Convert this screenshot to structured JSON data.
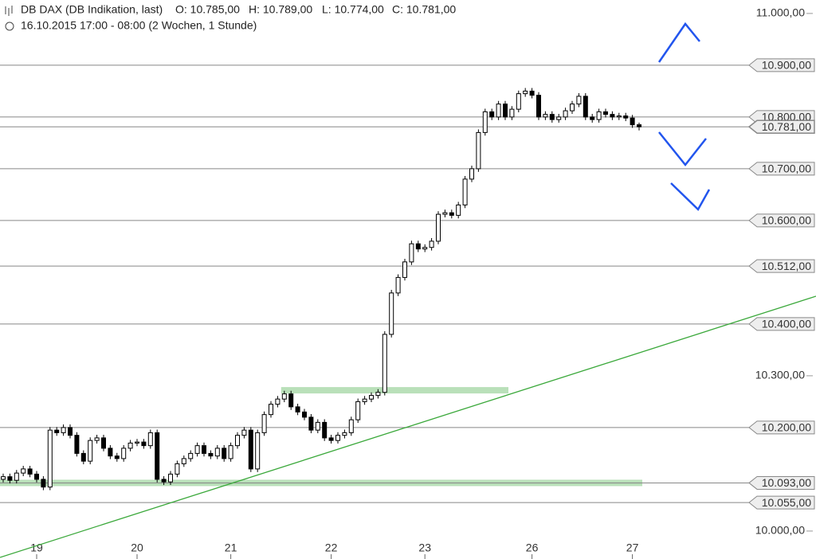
{
  "chart_data": {
    "type": "candlestick",
    "title": "DB DAX (DB Indikation, last)",
    "ohlc_labels": [
      "O: 10.785,00",
      "H: 10.789,00",
      "L: 10.774,00",
      "C: 10.781,00"
    ],
    "subtitle": "16.10.2015 17:00 - 08:00 (2 Wochen, 1 Stunde)",
    "categories": [
      null,
      null,
      null,
      null,
      null,
      "19",
      null,
      null,
      null,
      null,
      null,
      null,
      null,
      null,
      null,
      null,
      null,
      null,
      null,
      null,
      "20",
      null,
      null,
      null,
      null,
      null,
      null,
      null,
      null,
      null,
      null,
      null,
      null,
      null,
      "21",
      null,
      null,
      null,
      null,
      null,
      null,
      null,
      null,
      null,
      null,
      null,
      null,
      null,
      null,
      "22",
      null,
      null,
      null,
      null,
      null,
      null,
      null,
      null,
      null,
      null,
      null,
      null,
      null,
      "23",
      null,
      null,
      null,
      null,
      null,
      null,
      null,
      null,
      null,
      null,
      null,
      null,
      null,
      null,
      null,
      "26",
      null,
      null,
      null,
      null,
      null,
      null,
      null,
      null,
      null,
      null,
      null,
      null,
      null,
      null,
      "27",
      null
    ],
    "open": [
      10100,
      10105,
      10098,
      10112,
      10120,
      10110,
      10100,
      10085,
      10195,
      10190,
      10200,
      10185,
      10150,
      10135,
      10175,
      10180,
      10160,
      10145,
      10140,
      10160,
      10170,
      10172,
      10165,
      10190,
      10100,
      10095,
      10110,
      10130,
      10140,
      10150,
      10165,
      10150,
      10145,
      10160,
      10140,
      10165,
      10185,
      10195,
      10120,
      10190,
      10225,
      10245,
      10255,
      10265,
      10240,
      10230,
      10220,
      10195,
      10210,
      10180,
      10175,
      10185,
      10190,
      10215,
      10250,
      10255,
      10262,
      10268,
      10380,
      10460,
      10490,
      10520,
      10555,
      10545,
      10548,
      10560,
      10612,
      10615,
      10610,
      10630,
      10680,
      10700,
      10770,
      10810,
      10800,
      10825,
      10800,
      10815,
      10845,
      10850,
      10842,
      10800,
      10805,
      10795,
      10800,
      10812,
      10825,
      10840,
      10800,
      10795,
      10810,
      10805,
      10800,
      10802,
      10798,
      10785
    ],
    "high": [
      10111,
      10111,
      10118,
      10126,
      10126,
      10116,
      10106,
      10201,
      10201,
      10206,
      10206,
      10191,
      10156,
      10181,
      10186,
      10186,
      10166,
      10151,
      10166,
      10176,
      10178,
      10178,
      10196,
      10196,
      10106,
      10116,
      10136,
      10146,
      10156,
      10171,
      10171,
      10156,
      10166,
      10166,
      10171,
      10191,
      10201,
      10201,
      10196,
      10231,
      10251,
      10261,
      10271,
      10271,
      10246,
      10236,
      10226,
      10216,
      10216,
      10186,
      10191,
      10196,
      10221,
      10256,
      10261,
      10268,
      10274,
      10386,
      10466,
      10496,
      10526,
      10561,
      10561,
      10554,
      10566,
      10618,
      10621,
      10621,
      10636,
      10686,
      10706,
      10776,
      10816,
      10816,
      10831,
      10831,
      10821,
      10851,
      10856,
      10856,
      10848,
      10811,
      10811,
      10806,
      10818,
      10831,
      10846,
      10846,
      10806,
      10816,
      10816,
      10811,
      10808,
      10808,
      10804,
      10789
    ],
    "low": [
      10094,
      10092,
      10092,
      10106,
      10104,
      10094,
      10079,
      10079,
      10184,
      10184,
      10179,
      10144,
      10129,
      10129,
      10169,
      10154,
      10139,
      10134,
      10134,
      10154,
      10164,
      10159,
      10159,
      10094,
      10089,
      10089,
      10104,
      10124,
      10134,
      10144,
      10144,
      10139,
      10139,
      10134,
      10134,
      10159,
      10179,
      10114,
      10114,
      10184,
      10219,
      10239,
      10249,
      10234,
      10224,
      10214,
      10189,
      10189,
      10174,
      10169,
      10169,
      10179,
      10184,
      10209,
      10244,
      10249,
      10256,
      10262,
      10374,
      10454,
      10484,
      10514,
      10539,
      10539,
      10542,
      10554,
      10606,
      10604,
      10604,
      10624,
      10674,
      10694,
      10764,
      10794,
      10794,
      10794,
      10794,
      10809,
      10839,
      10836,
      10794,
      10794,
      10789,
      10789,
      10794,
      10806,
      10819,
      10794,
      10789,
      10789,
      10799,
      10794,
      10794,
      10792,
      10779,
      10774
    ],
    "close": [
      10105,
      10098,
      10112,
      10120,
      10110,
      10100,
      10085,
      10195,
      10190,
      10200,
      10185,
      10150,
      10135,
      10175,
      10180,
      10160,
      10145,
      10140,
      10160,
      10170,
      10172,
      10165,
      10190,
      10100,
      10095,
      10110,
      10130,
      10140,
      10150,
      10165,
      10150,
      10145,
      10160,
      10140,
      10165,
      10185,
      10195,
      10120,
      10190,
      10225,
      10245,
      10255,
      10265,
      10240,
      10230,
      10220,
      10195,
      10210,
      10180,
      10175,
      10185,
      10190,
      10215,
      10250,
      10255,
      10262,
      10268,
      10380,
      10460,
      10490,
      10520,
      10555,
      10545,
      10548,
      10560,
      10612,
      10615,
      10610,
      10630,
      10680,
      10700,
      10770,
      10810,
      10800,
      10825,
      10800,
      10815,
      10845,
      10850,
      10842,
      10800,
      10805,
      10795,
      10800,
      10812,
      10825,
      10840,
      10800,
      10795,
      10810,
      10805,
      10800,
      10802,
      10798,
      10785,
      10781
    ],
    "up_color": "#ffffff",
    "down_color": "#000000",
    "ylim": [
      9946,
      11026
    ],
    "yticks": [
      {
        "value": 11000,
        "label": "11.000,00"
      },
      {
        "value": 10300,
        "label": "10.300,00"
      },
      {
        "value": 10000,
        "label": "10.000,00"
      }
    ],
    "levels": [
      {
        "value": 10900,
        "label": "10.900,00"
      },
      {
        "value": 10800,
        "label": "10.800,00"
      },
      {
        "value": 10700,
        "label": "10.700,00"
      },
      {
        "value": 10600,
        "label": "10.600,00"
      },
      {
        "value": 10512,
        "label": "10.512,00"
      },
      {
        "value": 10400,
        "label": "10.400,00"
      },
      {
        "value": 10200,
        "label": "10.200,00"
      },
      {
        "value": 10093,
        "label": "10.093,00"
      },
      {
        "value": 10055,
        "label": "10.055,00"
      }
    ],
    "last": {
      "value": 10781,
      "label": "10.781,00"
    },
    "zones": [
      {
        "value": 10093
      },
      {
        "value": 10272
      }
    ],
    "zone_color": "#a8d8a8"
  }
}
